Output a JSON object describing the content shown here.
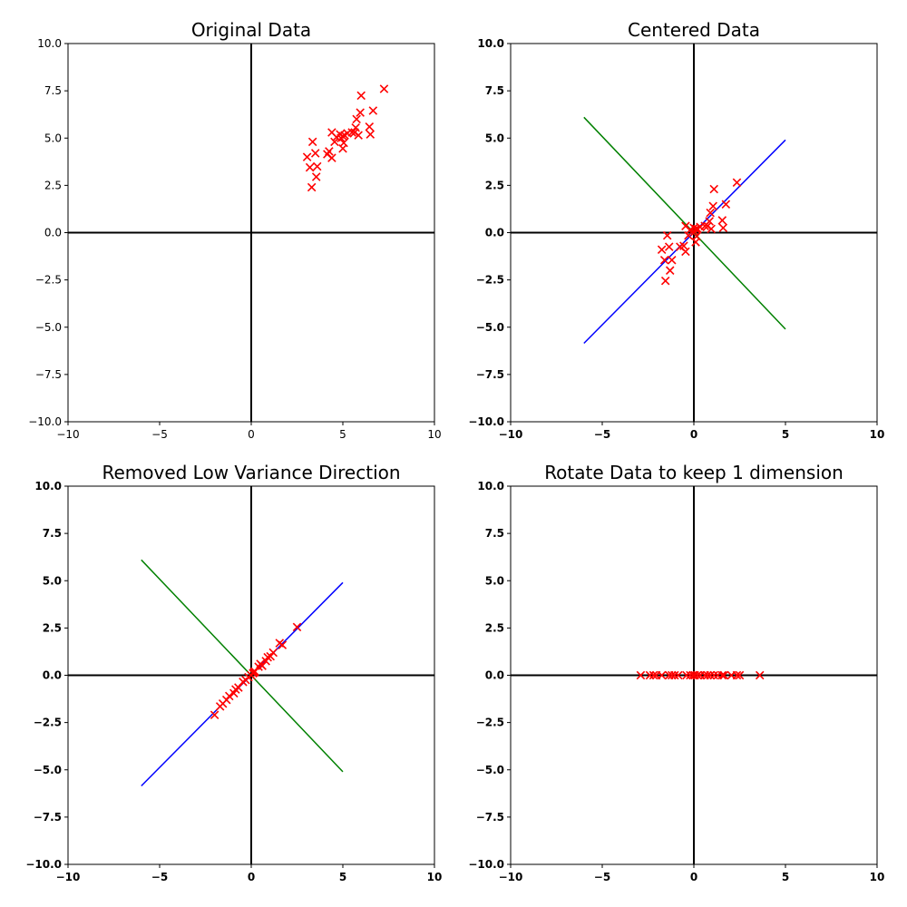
{
  "chart_data": [
    {
      "type": "scatter",
      "title": "Original Data",
      "xlim": [
        -10,
        10
      ],
      "ylim": [
        -10,
        10
      ],
      "xticks": [
        -10,
        -5,
        0,
        5,
        10
      ],
      "yticks": [
        -10,
        -7.5,
        -5,
        -2.5,
        0,
        2.5,
        5,
        7.5,
        10
      ],
      "xtick_labels": [
        "−10",
        "−5",
        "0",
        "5",
        "10"
      ],
      "ytick_labels": [
        "−10.0",
        "−7.5",
        "−5.0",
        "−2.5",
        "0.0",
        "2.5",
        "5.0",
        "7.5",
        "10.0"
      ],
      "tick_bold": false,
      "grid": false,
      "axis_lines": [
        "x=0",
        "y=0"
      ],
      "marker": "x",
      "marker_color": "#ff0000",
      "points": [
        [
          3.05,
          4.0
        ],
        [
          3.2,
          3.45
        ],
        [
          3.35,
          4.8
        ],
        [
          3.5,
          4.2
        ],
        [
          3.6,
          3.5
        ],
        [
          3.55,
          2.95
        ],
        [
          3.3,
          2.4
        ],
        [
          4.15,
          4.15
        ],
        [
          4.25,
          4.3
        ],
        [
          4.4,
          3.95
        ],
        [
          4.4,
          5.3
        ],
        [
          4.55,
          4.8
        ],
        [
          4.65,
          5.05
        ],
        [
          4.85,
          5.2
        ],
        [
          4.9,
          5.0
        ],
        [
          5.0,
          5.1
        ],
        [
          5.0,
          4.45
        ],
        [
          5.05,
          4.75
        ],
        [
          5.1,
          5.15
        ],
        [
          5.25,
          5.25
        ],
        [
          5.5,
          5.3
        ],
        [
          5.65,
          5.3
        ],
        [
          5.7,
          5.55
        ],
        [
          5.75,
          6.0
        ],
        [
          5.85,
          5.15
        ],
        [
          5.95,
          6.35
        ],
        [
          6.0,
          7.25
        ],
        [
          6.45,
          5.6
        ],
        [
          6.5,
          5.2
        ],
        [
          6.65,
          6.45
        ],
        [
          7.25,
          7.6
        ]
      ],
      "lines": []
    },
    {
      "type": "scatter",
      "title": "Centered Data",
      "xlim": [
        -10,
        10
      ],
      "ylim": [
        -10,
        10
      ],
      "xticks": [
        -10,
        -5,
        0,
        5,
        10
      ],
      "yticks": [
        -10,
        -7.5,
        -5,
        -2.5,
        0,
        2.5,
        5,
        7.5,
        10
      ],
      "xtick_labels": [
        "−10",
        "−5",
        "0",
        "5",
        "10"
      ],
      "ytick_labels": [
        "−10.0",
        "−7.5",
        "−5.0",
        "−2.5",
        "0.0",
        "2.5",
        "5.0",
        "7.5",
        "10.0"
      ],
      "tick_bold": true,
      "grid": false,
      "axis_lines": [
        "x=0",
        "y=0"
      ],
      "marker": "x",
      "marker_color": "#ff0000",
      "points": [
        [
          -1.75,
          -0.9
        ],
        [
          -1.6,
          -1.45
        ],
        [
          -1.45,
          -0.15
        ],
        [
          -1.35,
          -0.75
        ],
        [
          -1.2,
          -1.45
        ],
        [
          -1.3,
          -2.0
        ],
        [
          -1.55,
          -2.55
        ],
        [
          -0.75,
          -0.75
        ],
        [
          -0.55,
          -0.7
        ],
        [
          -0.45,
          -1.0
        ],
        [
          -0.45,
          0.35
        ],
        [
          -0.3,
          -0.15
        ],
        [
          -0.2,
          0.15
        ],
        [
          0.0,
          0.25
        ],
        [
          0.05,
          0.05
        ],
        [
          0.1,
          0.2
        ],
        [
          0.1,
          -0.5
        ],
        [
          0.15,
          -0.2
        ],
        [
          0.2,
          0.2
        ],
        [
          0.35,
          0.3
        ],
        [
          0.6,
          0.35
        ],
        [
          0.75,
          0.35
        ],
        [
          0.85,
          0.6
        ],
        [
          0.9,
          1.05
        ],
        [
          0.95,
          0.2
        ],
        [
          1.05,
          1.4
        ],
        [
          1.1,
          2.3
        ],
        [
          1.55,
          0.65
        ],
        [
          1.6,
          0.25
        ],
        [
          1.75,
          1.5
        ],
        [
          2.35,
          2.65
        ]
      ],
      "lines": [
        {
          "color": "#0000ff",
          "from": [
            -6,
            -5.85
          ],
          "to": [
            5,
            4.9
          ]
        },
        {
          "color": "#008000",
          "from": [
            -6,
            6.1
          ],
          "to": [
            5,
            -5.1
          ]
        }
      ]
    },
    {
      "type": "scatter",
      "title": "Removed Low Variance Direction",
      "xlim": [
        -10,
        10
      ],
      "ylim": [
        -10,
        10
      ],
      "xticks": [
        -10,
        -5,
        0,
        5,
        10
      ],
      "yticks": [
        -10,
        -7.5,
        -5,
        -2.5,
        0,
        2.5,
        5,
        7.5,
        10
      ],
      "xtick_labels": [
        "−10",
        "−5",
        "0",
        "5",
        "10"
      ],
      "ytick_labels": [
        "−10.0",
        "−7.5",
        "−5.0",
        "−2.5",
        "0.0",
        "2.5",
        "5.0",
        "7.5",
        "10.0"
      ],
      "tick_bold": true,
      "grid": false,
      "axis_lines": [
        "x=0",
        "y=0"
      ],
      "marker": "x",
      "marker_color": "#ff0000",
      "points": [
        [
          -2.0,
          -2.1
        ],
        [
          -1.7,
          -1.65
        ],
        [
          -1.55,
          -1.5
        ],
        [
          -1.35,
          -1.3
        ],
        [
          -1.2,
          -1.1
        ],
        [
          -0.95,
          -0.95
        ],
        [
          -0.85,
          -0.75
        ],
        [
          -0.7,
          -0.65
        ],
        [
          -0.45,
          -0.35
        ],
        [
          -0.3,
          -0.25
        ],
        [
          -0.15,
          -0.1
        ],
        [
          0.0,
          0.0
        ],
        [
          0.1,
          0.1
        ],
        [
          0.15,
          0.15
        ],
        [
          0.2,
          0.2
        ],
        [
          0.4,
          0.45
        ],
        [
          0.5,
          0.6
        ],
        [
          0.6,
          0.5
        ],
        [
          0.8,
          0.75
        ],
        [
          0.9,
          0.95
        ],
        [
          1.05,
          1.0
        ],
        [
          1.2,
          1.2
        ],
        [
          1.55,
          1.7
        ],
        [
          1.7,
          1.6
        ],
        [
          2.5,
          2.55
        ]
      ],
      "lines": [
        {
          "color": "#0000ff",
          "from": [
            -6,
            -5.85
          ],
          "to": [
            5,
            4.9
          ]
        },
        {
          "color": "#008000",
          "from": [
            -6,
            6.1
          ],
          "to": [
            5,
            -5.1
          ]
        }
      ]
    },
    {
      "type": "scatter",
      "title": "Rotate Data to keep 1 dimension",
      "xlim": [
        -10,
        10
      ],
      "ylim": [
        -10,
        10
      ],
      "xticks": [
        -10,
        -5,
        0,
        5,
        10
      ],
      "yticks": [
        -10,
        -7.5,
        -5,
        -2.5,
        0,
        2.5,
        5,
        7.5,
        10
      ],
      "xtick_labels": [
        "−10",
        "−5",
        "0",
        "5",
        "10"
      ],
      "ytick_labels": [
        "−10.0",
        "−7.5",
        "−5.0",
        "−2.5",
        "0.0",
        "2.5",
        "5.0",
        "7.5",
        "10.0"
      ],
      "tick_bold": true,
      "grid": false,
      "axis_lines": [
        "x=0",
        "y=0"
      ],
      "marker": "x",
      "marker_color": "#ff0000",
      "points": [
        [
          -2.9,
          0
        ],
        [
          -2.4,
          0
        ],
        [
          -2.2,
          0
        ],
        [
          -2.05,
          0
        ],
        [
          -1.75,
          0
        ],
        [
          -1.35,
          0
        ],
        [
          -1.2,
          0
        ],
        [
          -1.05,
          0
        ],
        [
          -0.85,
          0
        ],
        [
          -0.4,
          0
        ],
        [
          -0.2,
          0
        ],
        [
          -0.05,
          0
        ],
        [
          0.05,
          0
        ],
        [
          0.2,
          0
        ],
        [
          0.35,
          0
        ],
        [
          0.6,
          0
        ],
        [
          0.75,
          0
        ],
        [
          0.9,
          0
        ],
        [
          1.1,
          0
        ],
        [
          1.3,
          0
        ],
        [
          1.55,
          0
        ],
        [
          1.65,
          0
        ],
        [
          2.05,
          0
        ],
        [
          2.35,
          0
        ],
        [
          2.5,
          0
        ],
        [
          3.6,
          0
        ]
      ],
      "lines": []
    }
  ]
}
